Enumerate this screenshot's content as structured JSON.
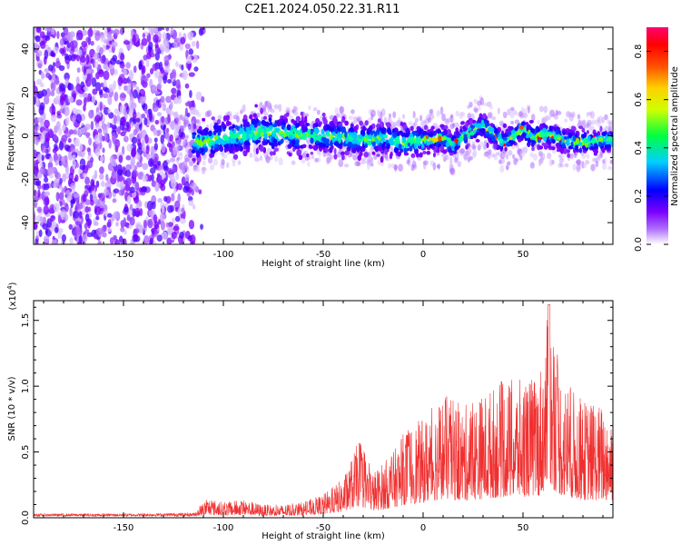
{
  "title": "C2E1.2024.050.22.31.R11",
  "chart_data": [
    {
      "type": "heatmap",
      "xlabel": "Height of straight line (km)",
      "ylabel": "Frequency (Hz)",
      "xlim": [
        -195,
        95
      ],
      "ylim": [
        -50,
        50
      ],
      "xticks": [
        -150,
        -100,
        -50,
        0,
        50
      ],
      "yticks": [
        -40,
        -20,
        0,
        20,
        40
      ],
      "colorbar": {
        "label": "Normalized spectral amplitude",
        "range": [
          0.0,
          0.9
        ],
        "ticks": [
          0.0,
          0.2,
          0.4,
          0.6,
          0.8
        ],
        "colormap": [
          "#ffffff",
          "#9b00ff",
          "#0000ff",
          "#00e5ff",
          "#00ff00",
          "#ffff00",
          "#ff8000",
          "#ff0000",
          "#ff0066"
        ]
      },
      "band_center_hz": [
        {
          "x": -110,
          "y": -3
        },
        {
          "x": -100,
          "y": -1
        },
        {
          "x": -90,
          "y": 0
        },
        {
          "x": -80,
          "y": 2
        },
        {
          "x": -70,
          "y": 1
        },
        {
          "x": -60,
          "y": 0
        },
        {
          "x": -50,
          "y": 0
        },
        {
          "x": -40,
          "y": -1
        },
        {
          "x": -30,
          "y": -2
        },
        {
          "x": -20,
          "y": -1
        },
        {
          "x": -10,
          "y": -3
        },
        {
          "x": 0,
          "y": -2
        },
        {
          "x": 10,
          "y": -1
        },
        {
          "x": 15,
          "y": -4
        },
        {
          "x": 20,
          "y": 0
        },
        {
          "x": 30,
          "y": 5
        },
        {
          "x": 35,
          "y": 1
        },
        {
          "x": 40,
          "y": -3
        },
        {
          "x": 50,
          "y": 3
        },
        {
          "x": 55,
          "y": -1
        },
        {
          "x": 60,
          "y": 1
        },
        {
          "x": 65,
          "y": 0
        },
        {
          "x": 70,
          "y": -2
        },
        {
          "x": 80,
          "y": -3
        },
        {
          "x": 90,
          "y": -2
        }
      ]
    },
    {
      "type": "line",
      "xlabel": "Height of straight line (km)",
      "ylabel": "SNR (10 * v/v)",
      "y_multiplier": "(x10",
      "y_multiplier_exp": "4",
      "y_multiplier_close": ")",
      "xlim": [
        -195,
        95
      ],
      "ylim": [
        0,
        1.65
      ],
      "xticks": [
        -150,
        -100,
        -50,
        0,
        50
      ],
      "yticks": [
        0.0,
        0.5,
        1.0,
        1.5
      ],
      "ytick_labels": [
        "0.0",
        "0.5",
        "1.0",
        "1.5"
      ],
      "color": "#f03030",
      "envelope": [
        {
          "x": -195,
          "y": 0.03
        },
        {
          "x": -150,
          "y": 0.03
        },
        {
          "x": -115,
          "y": 0.04
        },
        {
          "x": -108,
          "y": 0.15
        },
        {
          "x": -100,
          "y": 0.12
        },
        {
          "x": -90,
          "y": 0.14
        },
        {
          "x": -80,
          "y": 0.1
        },
        {
          "x": -70,
          "y": 0.1
        },
        {
          "x": -60,
          "y": 0.12
        },
        {
          "x": -50,
          "y": 0.18
        },
        {
          "x": -40,
          "y": 0.3
        },
        {
          "x": -32,
          "y": 0.6
        },
        {
          "x": -25,
          "y": 0.35
        },
        {
          "x": -15,
          "y": 0.5
        },
        {
          "x": -8,
          "y": 0.7
        },
        {
          "x": 0,
          "y": 0.75
        },
        {
          "x": 10,
          "y": 0.95
        },
        {
          "x": 20,
          "y": 0.85
        },
        {
          "x": 30,
          "y": 0.95
        },
        {
          "x": 40,
          "y": 1.05
        },
        {
          "x": 50,
          "y": 1.05
        },
        {
          "x": 58,
          "y": 1.1
        },
        {
          "x": 63,
          "y": 1.6
        },
        {
          "x": 70,
          "y": 1.05
        },
        {
          "x": 80,
          "y": 0.9
        },
        {
          "x": 95,
          "y": 0.85
        }
      ]
    }
  ]
}
